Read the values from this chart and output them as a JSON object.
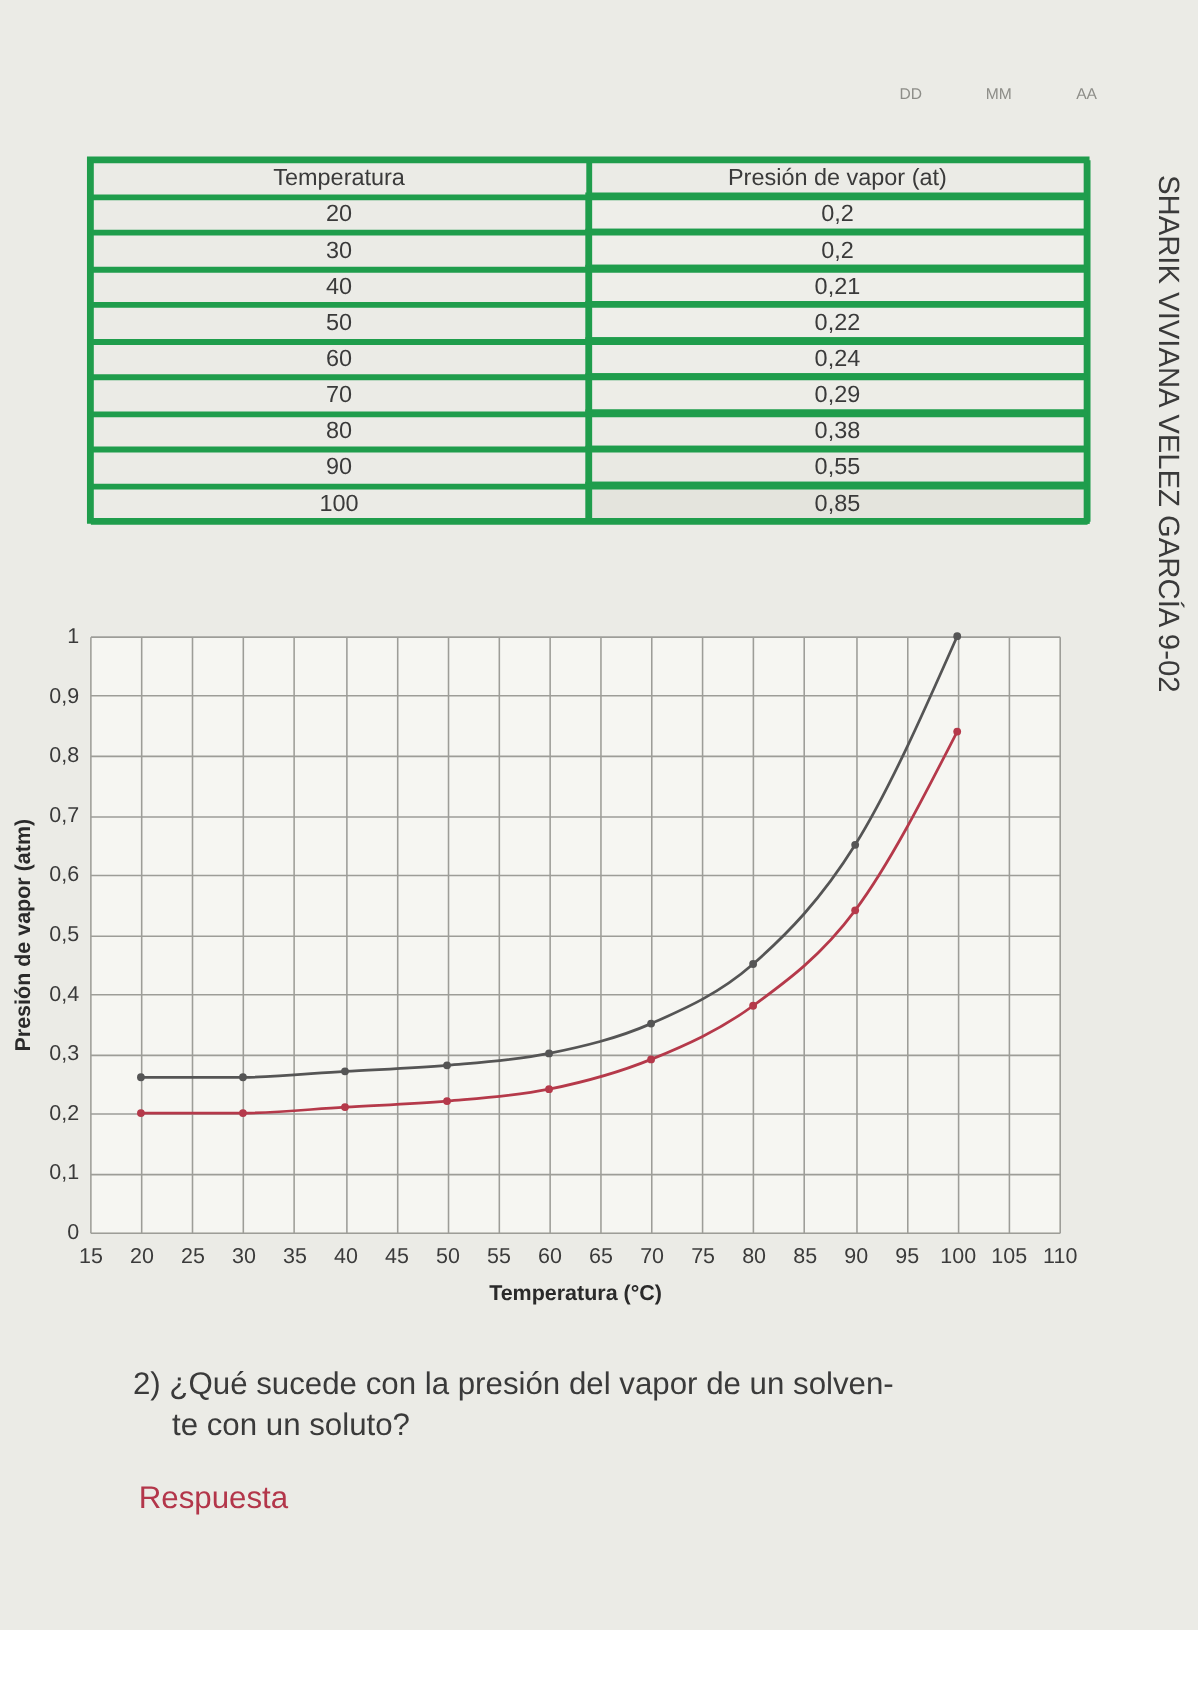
{
  "chart_data": [
    {
      "type": "heatmap",
      "ylabel": "Temperatura",
      "categories": [
        "Presión de vapor (at)"
      ],
      "y_categories": [
        "20",
        "30",
        "40",
        "50",
        "60",
        "70",
        "80",
        "90",
        "100"
      ],
      "cells": [
        [
          0.2
        ],
        [
          0.2
        ],
        [
          0.21
        ],
        [
          0.22
        ],
        [
          0.24
        ],
        [
          0.29
        ],
        [
          0.38
        ],
        [
          0.55
        ],
        [
          0.85
        ]
      ],
      "cell_labels": [
        [
          "0,2"
        ],
        [
          "0,2"
        ],
        [
          "0,21"
        ],
        [
          "0,22"
        ],
        [
          "0,24"
        ],
        [
          "0,29"
        ],
        [
          "0,38"
        ],
        [
          "0,55"
        ],
        [
          "0,85"
        ]
      ]
    },
    {
      "type": "line",
      "xlabel": "Temperatura (°C)",
      "ylabel": "Presión de vapor (atm)",
      "x": [
        20,
        30,
        40,
        50,
        60,
        70,
        80,
        90,
        100
      ],
      "series": [
        {
          "color": "#555555",
          "values": [
            0.26,
            0.26,
            0.27,
            0.28,
            0.3,
            0.35,
            0.45,
            0.65,
            1
          ]
        },
        {
          "color": "#b5394a",
          "values": [
            0.2,
            0.2,
            0.21,
            0.22,
            0.24,
            0.29,
            0.38,
            0.54,
            0.84
          ]
        }
      ],
      "xlim": [
        15,
        110
      ],
      "xticks": [
        15,
        20,
        25,
        30,
        35,
        40,
        45,
        50,
        55,
        60,
        65,
        70,
        75,
        80,
        85,
        90,
        95,
        100,
        105,
        110
      ],
      "ylim": [
        0,
        1
      ],
      "yticks": [
        0,
        {
          "value": 0.1,
          "label": "0,1"
        },
        {
          "value": 0.2,
          "label": "0,2"
        },
        {
          "value": 0.3,
          "label": "0,3"
        },
        {
          "value": 0.4,
          "label": "0,4"
        },
        {
          "value": 0.5,
          "label": "0,5"
        },
        {
          "value": 0.6,
          "label": "0,6"
        },
        {
          "value": 0.7,
          "label": "0,7"
        },
        {
          "value": 0.8,
          "label": "0,8"
        },
        {
          "value": 0.9,
          "label": "0,9"
        },
        1
      ],
      "grid": true,
      "marker": "circle",
      "line_style": "solid",
      "annotations": [
        "SHARIK VIVIANA VELEZ GARCÍA 9-02",
        "2) ¿Qué sucede con la presión del vapor de un solven-",
        "te con un soluto?",
        "Respuesta",
        "DD",
        "MM",
        "AA"
      ]
    }
  ]
}
